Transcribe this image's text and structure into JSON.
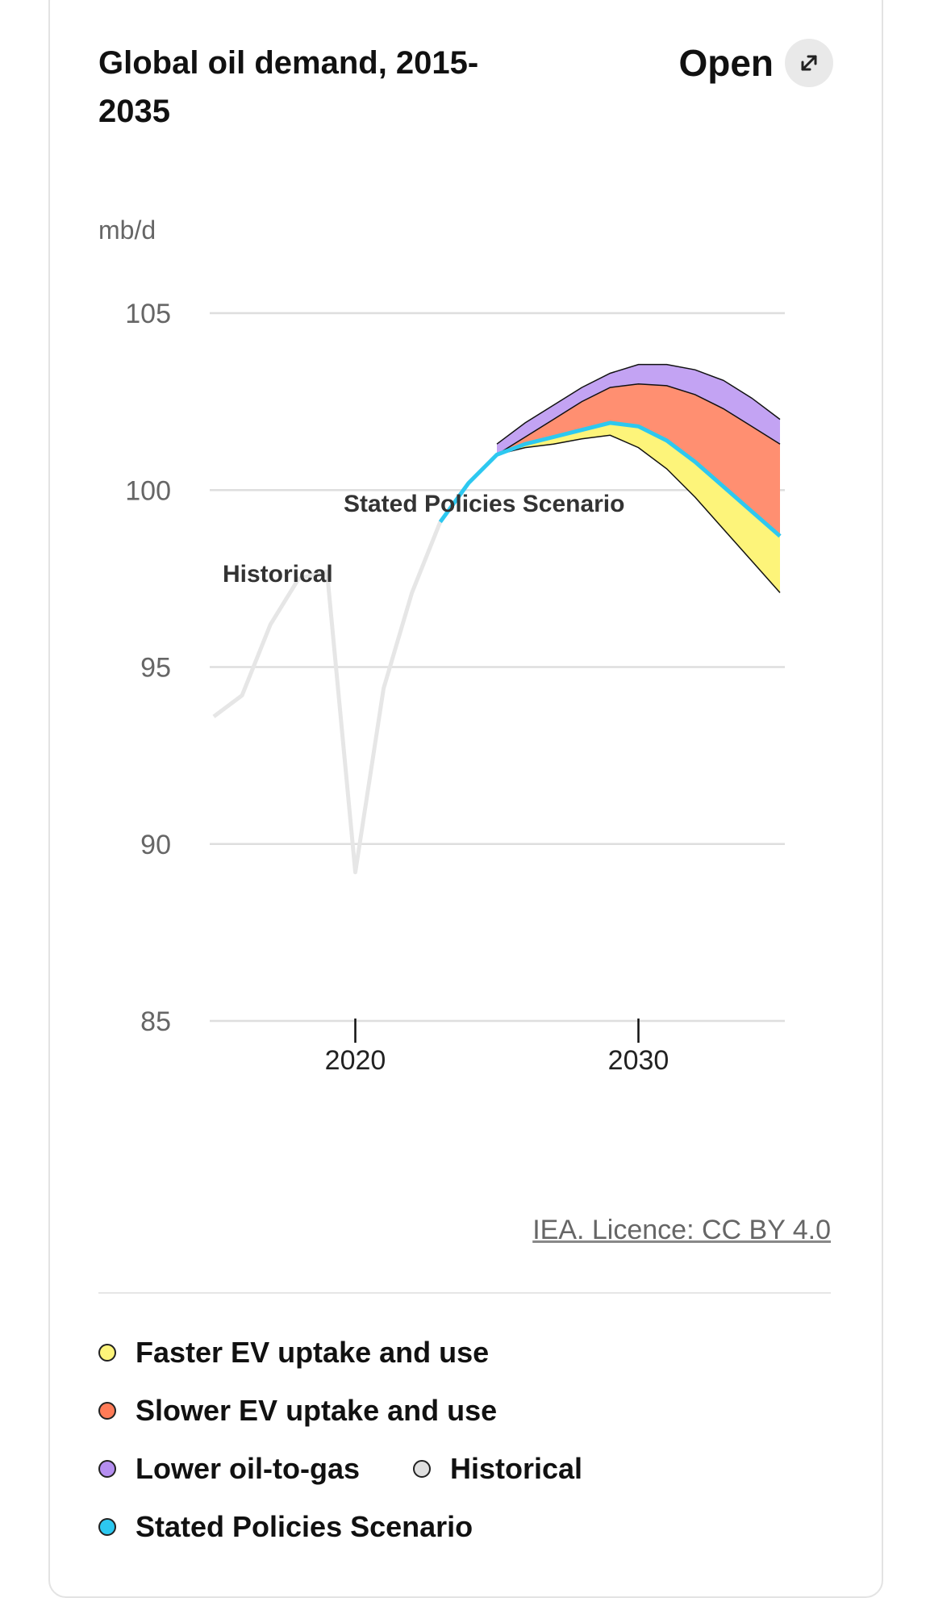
{
  "title": "Global oil demand, 2015-2035",
  "open_label": "Open",
  "icons": {
    "open": "expand-arrows-icon"
  },
  "source_text": "IEA. Licence: CC BY 4.0",
  "colors": {
    "faster_ev": "#fdf47a",
    "slower_ev": "#ff8f71",
    "lower_oil_to_gas": "#c3a3f3",
    "stated_policies": "#2dc8f0",
    "historical": "#e6e6e6",
    "grid": "#dedede"
  },
  "legend": [
    {
      "label": "Faster EV uptake and use",
      "color": "#fdf47a"
    },
    {
      "label": "Slower EV uptake and use",
      "color": "#ff7b57"
    },
    {
      "label": "Lower oil-to-gas",
      "color": "#b58ef0"
    },
    {
      "label": "Historical",
      "color": "#e0e0e0"
    },
    {
      "label": "Stated Policies Scenario",
      "color": "#2dc8f0"
    }
  ],
  "chart_data": {
    "type": "area",
    "title": "Global oil demand, 2015-2035",
    "ylabel": "mb/d",
    "xlabel": "",
    "ylim": [
      85,
      105
    ],
    "xlim": [
      2015,
      2035
    ],
    "yticks": [
      85,
      90,
      95,
      100,
      105
    ],
    "xticks": [
      2020,
      2030
    ],
    "annotations": [
      "Historical",
      "Stated Policies Scenario"
    ],
    "grid": true,
    "legend_position": "bottom",
    "series": [
      {
        "name": "Historical",
        "type": "line",
        "x": [
          2015,
          2016,
          2017,
          2018,
          2019,
          2020,
          2021,
          2022,
          2023
        ],
        "values": [
          93.6,
          94.2,
          96.2,
          97.5,
          97.7,
          89.2,
          94.4,
          97.1,
          99.1
        ]
      },
      {
        "name": "Stated Policies Scenario",
        "type": "line",
        "x": [
          2023,
          2024,
          2025,
          2026,
          2027,
          2028,
          2029,
          2030,
          2031,
          2032,
          2033,
          2034,
          2035
        ],
        "values": [
          99.1,
          100.2,
          101.0,
          101.3,
          101.5,
          101.7,
          101.9,
          101.8,
          101.4,
          100.8,
          100.1,
          99.4,
          98.7
        ]
      },
      {
        "name": "Faster EV uptake and use",
        "type": "area",
        "x": [
          2025,
          2026,
          2027,
          2028,
          2029,
          2030,
          2031,
          2032,
          2033,
          2034,
          2035
        ],
        "values": [
          101.0,
          101.2,
          101.3,
          101.45,
          101.55,
          101.2,
          100.6,
          99.8,
          98.9,
          98.0,
          97.1
        ]
      },
      {
        "name": "Slower EV uptake and use",
        "type": "area",
        "x": [
          2025,
          2026,
          2027,
          2028,
          2029,
          2030,
          2031,
          2032,
          2033,
          2034,
          2035
        ],
        "values": [
          101.0,
          101.5,
          102.0,
          102.5,
          102.9,
          103.0,
          102.95,
          102.7,
          102.3,
          101.8,
          101.3
        ]
      },
      {
        "name": "Lower oil-to-gas",
        "type": "area",
        "x": [
          2025,
          2026,
          2027,
          2028,
          2029,
          2030,
          2031,
          2032,
          2033,
          2034,
          2035
        ],
        "values": [
          101.3,
          101.9,
          102.4,
          102.9,
          103.3,
          103.55,
          103.55,
          103.4,
          103.1,
          102.6,
          102.0
        ]
      }
    ]
  }
}
